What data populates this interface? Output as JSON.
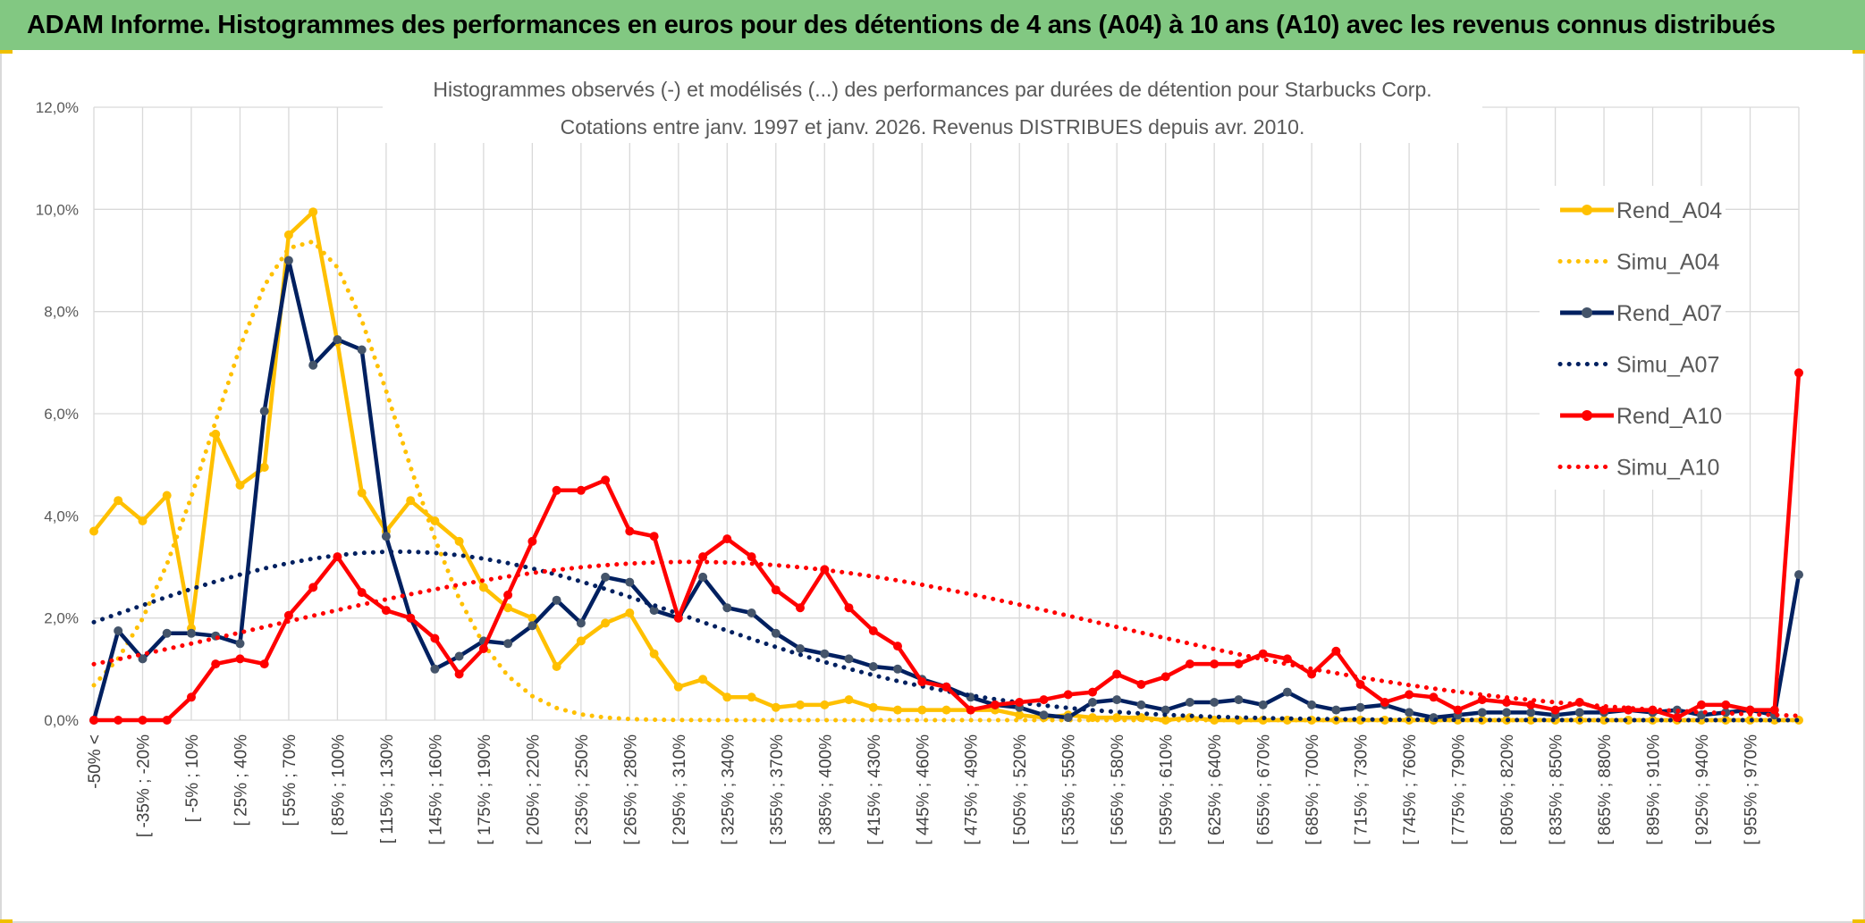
{
  "banner": {
    "title": "ADAM Informe. Histogrammes des performances en euros pour des détentions de 4 ans (A04) à 10 ans (A10) avec les revenus connus distribués"
  },
  "chart_data": {
    "type": "line",
    "title": "Histogrammes observés (-) et modélisés (...) des performances par durées de détention pour Starbucks Corp.",
    "subtitle": "Cotations entre janv. 1997 et janv. 2026. Revenus DISTRIBUES depuis avr. 2010.",
    "xlabel": "",
    "ylabel": "",
    "ylim": [
      0,
      12
    ],
    "y_ticks": [
      "0,0%",
      "2,0%",
      "4,0%",
      "6,0%",
      "8,0%",
      "10,0%",
      "12,0%"
    ],
    "y_tick_values": [
      0,
      2,
      4,
      6,
      8,
      10,
      12
    ],
    "x_tick_labels": [
      "-50% <",
      "[ -35% ; -20%",
      "[ -5% ; 10%",
      "[ 25% ; 40%",
      "[ 55% ; 70%",
      "[ 85% ; 100%",
      "[ 115% ; 130%",
      "[ 145% ; 160%",
      "[ 175% ; 190%",
      "[ 205% ; 220%",
      "[ 235% ; 250%",
      "[ 265% ; 280%",
      "[ 295% ; 310%",
      "[ 325% ; 340%",
      "[ 355% ; 370%",
      "[ 385% ; 400%",
      "[ 415% ; 430%",
      "[ 445% ; 460%",
      "[ 475% ; 490%",
      "[ 505% ; 520%",
      "[ 535% ; 550%",
      "[ 565% ; 580%",
      "[ 595% ; 610%",
      "[ 625% ; 640%",
      "[ 655% ; 670%",
      "[ 685% ; 700%",
      "[ 715% ; 730%",
      "[ 745% ; 760%",
      "[ 775% ; 790%",
      "[ 805% ; 820%",
      "[ 835% ; 850%",
      "[ 865% ; 880%",
      "[ 895% ; 910%",
      "[ 925% ; 940%",
      "[ 955% ; 970%"
    ],
    "category_count": 71,
    "grid": true,
    "legend_position": "right",
    "series": [
      {
        "name": "Rend_A04",
        "style": "solid",
        "markers": true,
        "color": "#FFC000",
        "values": [
          3.7,
          4.3,
          3.9,
          4.4,
          1.8,
          5.6,
          4.6,
          4.95,
          9.5,
          9.95,
          7.4,
          4.45,
          3.7,
          4.3,
          3.9,
          3.5,
          2.6,
          2.2,
          2.0,
          1.05,
          1.55,
          1.9,
          2.1,
          1.3,
          0.65,
          0.8,
          0.45,
          0.45,
          0.25,
          0.3,
          0.3,
          0.4,
          0.25,
          0.2,
          0.2,
          0.2,
          0.2,
          0.2,
          0.1,
          0.05,
          0.1,
          0.05,
          0.05,
          0.05,
          0.0,
          0.05,
          0.0,
          0.0,
          0.0,
          0.0,
          0.0,
          0.0,
          0.0,
          0.0,
          0.0,
          0.0,
          0.0,
          0.0,
          0.0,
          0.0,
          0.0,
          0.0,
          0.0,
          0.0,
          0.0,
          0.0,
          0.0,
          0.0,
          0.0,
          0.0,
          0.0
        ]
      },
      {
        "name": "Simu_A04",
        "style": "dotted",
        "markers": false,
        "color": "#FFC000",
        "mu": 8.7,
        "sigma": 3.8,
        "peak": 9.4
      },
      {
        "name": "Rend_A07",
        "style": "solid",
        "markers": true,
        "color": "#002060",
        "values": [
          0.0,
          1.75,
          1.2,
          1.7,
          1.7,
          1.65,
          1.5,
          6.05,
          9.0,
          6.95,
          7.45,
          7.25,
          3.6,
          2.0,
          1.0,
          1.25,
          1.55,
          1.5,
          1.85,
          2.35,
          1.9,
          2.8,
          2.7,
          2.15,
          2.0,
          2.8,
          2.2,
          2.1,
          1.7,
          1.4,
          1.3,
          1.2,
          1.05,
          1.0,
          0.8,
          0.65,
          0.45,
          0.3,
          0.25,
          0.1,
          0.05,
          0.35,
          0.4,
          0.3,
          0.2,
          0.35,
          0.35,
          0.4,
          0.3,
          0.55,
          0.3,
          0.2,
          0.25,
          0.3,
          0.15,
          0.05,
          0.1,
          0.15,
          0.15,
          0.15,
          0.1,
          0.15,
          0.15,
          0.2,
          0.15,
          0.2,
          0.1,
          0.15,
          0.2,
          0.1,
          2.85
        ]
      },
      {
        "name": "Simu_A07",
        "style": "dotted",
        "markers": false,
        "color": "#002060",
        "mu": 12.5,
        "sigma": 12.0,
        "peak": 3.3
      },
      {
        "name": "Rend_A10",
        "style": "solid",
        "markers": true,
        "color": "#FF0000",
        "values": [
          0.0,
          0.0,
          0.0,
          0.0,
          0.45,
          1.1,
          1.2,
          1.1,
          2.05,
          2.6,
          3.2,
          2.5,
          2.15,
          2.0,
          1.6,
          0.9,
          1.4,
          2.45,
          3.5,
          4.5,
          4.5,
          4.7,
          3.7,
          3.6,
          2.0,
          3.2,
          3.55,
          3.2,
          2.55,
          2.2,
          2.95,
          2.2,
          1.75,
          1.45,
          0.75,
          0.65,
          0.2,
          0.3,
          0.35,
          0.4,
          0.5,
          0.55,
          0.9,
          0.7,
          0.85,
          1.1,
          1.1,
          1.1,
          1.3,
          1.2,
          0.9,
          1.35,
          0.7,
          0.35,
          0.5,
          0.45,
          0.2,
          0.4,
          0.35,
          0.3,
          0.2,
          0.35,
          0.2,
          0.2,
          0.2,
          0.05,
          0.3,
          0.3,
          0.2,
          0.2,
          6.8
        ]
      },
      {
        "name": "Simu_A10",
        "style": "dotted",
        "markers": false,
        "color": "#FF0000",
        "mu": 24.5,
        "sigma": 17.0,
        "peak": 3.1
      }
    ]
  }
}
